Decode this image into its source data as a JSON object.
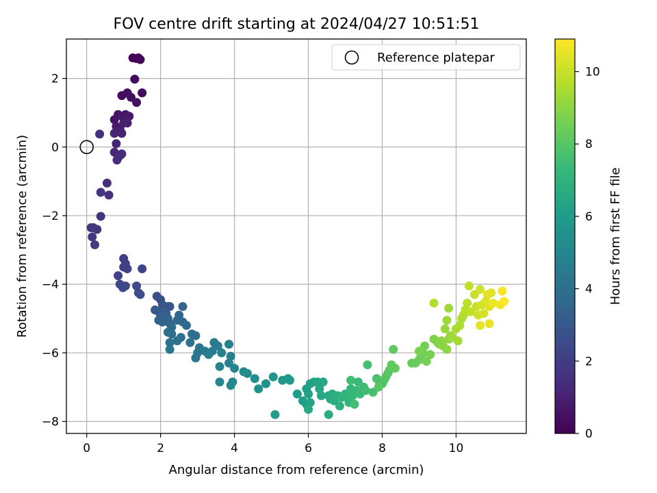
{
  "chart_data": {
    "type": "scatter",
    "title": "FOV centre drift starting at 2024/04/27 10:51:51",
    "xlabel": "Angular distance from reference (arcmin)",
    "ylabel": "Rotation from reference (arcmin)",
    "xlim": [
      -0.55,
      11.9
    ],
    "ylim": [
      -8.35,
      3.15
    ],
    "xticks": [
      "0",
      "2",
      "4",
      "6",
      "8",
      "10"
    ],
    "yticks": [
      "−8",
      "−6",
      "−4",
      "−2",
      "0",
      "2"
    ],
    "grid": true,
    "legend": {
      "position": "top-right",
      "entries": [
        "Reference platepar"
      ]
    },
    "reference_point": {
      "x": 0,
      "y": 0,
      "marker": "open-circle"
    },
    "colorbar": {
      "label": "Hours from first FF file",
      "range": [
        0,
        10.9
      ],
      "ticks": [
        "0",
        "2",
        "4",
        "6",
        "8",
        "10"
      ],
      "colormap": "viridis",
      "stops": [
        "#440154",
        "#482878",
        "#3e4989",
        "#31688e",
        "#26828e",
        "#1f9e89",
        "#35b779",
        "#6ece58",
        "#b5de2b",
        "#fde725"
      ]
    },
    "series": [
      {
        "points": [
          [
            1.25,
            2.6,
            0.0
          ],
          [
            1.4,
            2.6,
            0.1
          ],
          [
            1.45,
            2.55,
            0.15
          ],
          [
            1.35,
            2.58,
            0.2
          ],
          [
            1.3,
            1.98,
            0.25
          ],
          [
            1.5,
            1.58,
            0.3
          ],
          [
            0.95,
            1.5,
            0.35
          ],
          [
            1.1,
            1.58,
            0.4
          ],
          [
            1.2,
            1.45,
            0.45
          ],
          [
            1.35,
            1.3,
            0.5
          ],
          [
            0.75,
            0.8,
            0.55
          ],
          [
            0.85,
            0.95,
            0.6
          ],
          [
            0.95,
            0.9,
            0.65
          ],
          [
            1.05,
            0.95,
            0.7
          ],
          [
            1.15,
            0.9,
            0.75
          ],
          [
            0.8,
            0.6,
            0.8
          ],
          [
            0.9,
            0.55,
            0.85
          ],
          [
            1.0,
            0.7,
            0.9
          ],
          [
            1.1,
            0.7,
            0.95
          ],
          [
            0.85,
            0.45,
            1.0
          ],
          [
            0.95,
            0.4,
            1.05
          ],
          [
            0.75,
            0.4,
            1.1
          ],
          [
            0.8,
            0.1,
            1.15
          ],
          [
            0.75,
            -0.15,
            1.2
          ],
          [
            0.85,
            -0.3,
            1.25
          ],
          [
            0.9,
            -0.25,
            1.3
          ],
          [
            0.95,
            -0.2,
            1.35
          ],
          [
            0.82,
            -0.38,
            1.4
          ],
          [
            0.35,
            0.38,
            1.45
          ],
          [
            0.55,
            -1.05,
            1.5
          ],
          [
            0.6,
            -1.4,
            1.55
          ],
          [
            0.38,
            -1.32,
            1.6
          ],
          [
            0.38,
            -2.02,
            1.65
          ],
          [
            0.28,
            -2.4,
            1.7
          ],
          [
            0.12,
            -2.35,
            1.75
          ],
          [
            0.18,
            -2.35,
            1.8
          ],
          [
            0.15,
            -2.62,
            1.85
          ],
          [
            0.22,
            -2.85,
            1.9
          ],
          [
            1.0,
            -3.25,
            2.0
          ],
          [
            1.05,
            -3.4,
            2.05
          ],
          [
            1.0,
            -3.5,
            2.1
          ],
          [
            1.1,
            -3.55,
            2.15
          ],
          [
            0.85,
            -3.75,
            2.2
          ],
          [
            1.5,
            -3.55,
            2.25
          ],
          [
            0.9,
            -4.0,
            2.3
          ],
          [
            1.05,
            -4.05,
            2.35
          ],
          [
            0.98,
            -4.1,
            2.4
          ],
          [
            1.35,
            -4.05,
            2.45
          ],
          [
            1.4,
            -4.25,
            2.5
          ],
          [
            1.45,
            -4.3,
            2.55
          ],
          [
            1.9,
            -4.35,
            2.6
          ],
          [
            2.0,
            -4.45,
            2.7
          ],
          [
            2.05,
            -4.6,
            2.8
          ],
          [
            2.2,
            -4.65,
            2.9
          ],
          [
            2.25,
            -4.65,
            3.0
          ],
          [
            1.85,
            -4.75,
            3.05
          ],
          [
            1.95,
            -4.8,
            3.1
          ],
          [
            2.05,
            -4.85,
            3.15
          ],
          [
            2.15,
            -4.85,
            3.2
          ],
          [
            2.0,
            -4.95,
            3.25
          ],
          [
            2.1,
            -5.0,
            3.3
          ],
          [
            2.2,
            -5.0,
            3.35
          ],
          [
            1.95,
            -5.05,
            3.4
          ],
          [
            2.05,
            -5.1,
            3.45
          ],
          [
            2.25,
            -5.15,
            3.5
          ],
          [
            2.6,
            -4.65,
            3.55
          ],
          [
            2.5,
            -4.9,
            3.6
          ],
          [
            2.45,
            -5.05,
            3.65
          ],
          [
            2.6,
            -5.1,
            3.7
          ],
          [
            2.7,
            -5.2,
            3.75
          ],
          [
            2.3,
            -5.25,
            3.8
          ],
          [
            2.2,
            -5.4,
            3.85
          ],
          [
            2.3,
            -5.45,
            3.9
          ],
          [
            2.85,
            -5.45,
            3.95
          ],
          [
            2.95,
            -5.5,
            4.0
          ],
          [
            2.55,
            -5.55,
            4.05
          ],
          [
            2.45,
            -5.65,
            4.1
          ],
          [
            2.25,
            -5.7,
            4.15
          ],
          [
            2.8,
            -5.7,
            4.2
          ],
          [
            2.25,
            -5.9,
            4.25
          ],
          [
            3.05,
            -5.85,
            4.3
          ],
          [
            3.0,
            -6.0,
            4.35
          ],
          [
            2.95,
            -6.15,
            4.4
          ],
          [
            3.2,
            -5.95,
            4.45
          ],
          [
            3.45,
            -5.7,
            4.5
          ],
          [
            3.55,
            -5.8,
            4.55
          ],
          [
            3.4,
            -5.95,
            4.6
          ],
          [
            3.3,
            -6.05,
            4.65
          ],
          [
            3.85,
            -5.75,
            4.7
          ],
          [
            3.65,
            -6.0,
            4.75
          ],
          [
            3.9,
            -6.1,
            4.8
          ],
          [
            3.85,
            -6.3,
            4.85
          ],
          [
            3.6,
            -6.4,
            4.9
          ],
          [
            4.0,
            -6.45,
            4.95
          ],
          [
            3.6,
            -6.85,
            5.0
          ],
          [
            3.95,
            -6.85,
            5.05
          ],
          [
            3.9,
            -6.95,
            5.1
          ],
          [
            4.25,
            -6.55,
            5.2
          ],
          [
            4.35,
            -6.6,
            5.3
          ],
          [
            4.55,
            -6.75,
            5.4
          ],
          [
            4.65,
            -7.05,
            5.5
          ],
          [
            4.85,
            -6.9,
            5.6
          ],
          [
            5.05,
            -6.7,
            5.7
          ],
          [
            5.3,
            -6.8,
            5.8
          ],
          [
            5.45,
            -6.75,
            5.85
          ],
          [
            5.5,
            -6.8,
            5.9
          ],
          [
            5.1,
            -7.8,
            5.95
          ],
          [
            5.7,
            -7.2,
            6.0
          ],
          [
            5.85,
            -7.4,
            6.05
          ],
          [
            5.95,
            -7.5,
            6.1
          ],
          [
            5.95,
            -7.05,
            6.15
          ],
          [
            6.0,
            -7.2,
            6.2
          ],
          [
            6.05,
            -7.45,
            6.25
          ],
          [
            6.05,
            -6.9,
            6.3
          ],
          [
            6.15,
            -6.85,
            6.35
          ],
          [
            6.25,
            -6.85,
            6.4
          ],
          [
            6.3,
            -7.05,
            6.45
          ],
          [
            6.35,
            -7.25,
            6.5
          ],
          [
            6.4,
            -6.85,
            6.55
          ],
          [
            6.0,
            -7.65,
            6.6
          ],
          [
            6.55,
            -7.25,
            6.65
          ],
          [
            6.6,
            -7.35,
            6.7
          ],
          [
            6.65,
            -7.2,
            6.75
          ],
          [
            6.7,
            -7.4,
            6.8
          ],
          [
            6.55,
            -7.8,
            6.85
          ],
          [
            6.8,
            -7.25,
            6.9
          ],
          [
            6.85,
            -7.55,
            6.95
          ],
          [
            6.9,
            -7.3,
            7.0
          ],
          [
            7.0,
            -7.2,
            7.05
          ],
          [
            7.05,
            -7.3,
            7.1
          ],
          [
            7.1,
            -7.45,
            7.15
          ],
          [
            7.15,
            -7.05,
            7.2
          ],
          [
            7.2,
            -7.25,
            7.25
          ],
          [
            7.3,
            -7.1,
            7.3
          ],
          [
            7.35,
            -6.85,
            7.35
          ],
          [
            7.4,
            -7.2,
            7.4
          ],
          [
            7.5,
            -7.0,
            7.45
          ],
          [
            7.55,
            -7.1,
            7.5
          ],
          [
            7.15,
            -6.8,
            7.55
          ],
          [
            7.25,
            -7.5,
            7.6
          ],
          [
            7.6,
            -6.35,
            7.65
          ],
          [
            7.75,
            -7.15,
            7.7
          ],
          [
            7.85,
            -6.75,
            7.75
          ],
          [
            7.9,
            -6.8,
            7.8
          ],
          [
            8.0,
            -6.9,
            7.85
          ],
          [
            8.05,
            -6.8,
            7.9
          ],
          [
            8.1,
            -6.7,
            7.95
          ],
          [
            8.15,
            -6.6,
            8.0
          ],
          [
            7.9,
            -7.0,
            8.05
          ],
          [
            8.2,
            -6.5,
            8.1
          ],
          [
            8.25,
            -6.35,
            8.15
          ],
          [
            8.3,
            -5.9,
            8.2
          ],
          [
            8.35,
            -6.45,
            8.25
          ],
          [
            8.8,
            -6.3,
            8.3
          ],
          [
            8.9,
            -6.3,
            8.35
          ],
          [
            9.0,
            -6.2,
            8.4
          ],
          [
            9.05,
            -6.1,
            8.45
          ],
          [
            9.1,
            -6.0,
            8.5
          ],
          [
            9.15,
            -5.8,
            8.55
          ],
          [
            9.2,
            -6.25,
            8.6
          ],
          [
            9.3,
            -6.05,
            8.65
          ],
          [
            9.0,
            -5.95,
            8.7
          ],
          [
            9.4,
            -5.6,
            8.75
          ],
          [
            9.5,
            -5.7,
            8.8
          ],
          [
            9.55,
            -5.75,
            8.85
          ],
          [
            9.6,
            -5.65,
            8.9
          ],
          [
            9.65,
            -5.8,
            8.95
          ],
          [
            9.75,
            -5.9,
            9.0
          ],
          [
            9.8,
            -5.6,
            9.1
          ],
          [
            9.85,
            -5.5,
            9.15
          ],
          [
            9.7,
            -5.3,
            9.2
          ],
          [
            9.75,
            -5.05,
            9.25
          ],
          [
            9.8,
            -4.7,
            9.3
          ],
          [
            9.9,
            -5.55,
            9.35
          ],
          [
            10.05,
            -5.65,
            9.4
          ],
          [
            10.0,
            -5.3,
            9.45
          ],
          [
            10.1,
            -5.2,
            9.5
          ],
          [
            10.15,
            -5.0,
            9.55
          ],
          [
            10.2,
            -4.9,
            9.6
          ],
          [
            9.4,
            -4.55,
            9.65
          ],
          [
            10.25,
            -4.75,
            9.7
          ],
          [
            10.3,
            -4.55,
            9.8
          ],
          [
            10.35,
            -4.05,
            9.85
          ],
          [
            10.4,
            -4.8,
            9.9
          ],
          [
            10.5,
            -4.3,
            10.0
          ],
          [
            10.55,
            -4.65,
            10.05
          ],
          [
            10.6,
            -4.9,
            10.1
          ],
          [
            10.65,
            -4.15,
            10.15
          ],
          [
            10.7,
            -4.6,
            10.2
          ],
          [
            10.75,
            -4.85,
            10.25
          ],
          [
            10.8,
            -4.5,
            10.3
          ],
          [
            10.85,
            -4.3,
            10.35
          ],
          [
            10.9,
            -4.65,
            10.4
          ],
          [
            10.95,
            -4.25,
            10.45
          ],
          [
            10.65,
            -5.2,
            10.5
          ],
          [
            10.9,
            -5.15,
            10.55
          ],
          [
            11.0,
            -4.55,
            10.6
          ],
          [
            11.2,
            -4.6,
            10.7
          ],
          [
            11.25,
            -4.2,
            10.8
          ],
          [
            11.3,
            -4.5,
            10.9
          ]
        ]
      }
    ]
  }
}
